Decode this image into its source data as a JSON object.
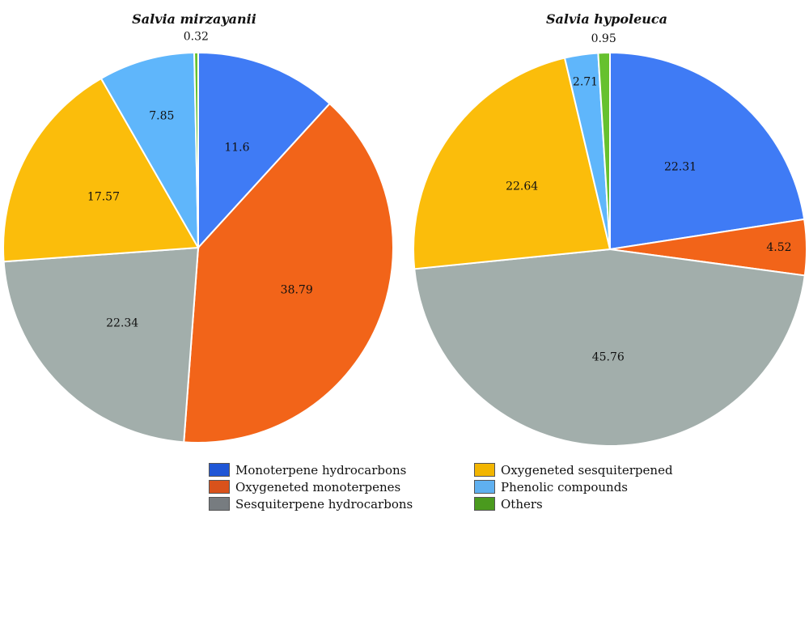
{
  "legend": [
    {
      "label": "Monoterpene hydrocarbons",
      "color": "#1f56d6"
    },
    {
      "label": "Oxygeneted monoterpenes",
      "color": "#d9521b"
    },
    {
      "label": "Sesquiterpene hydrocarbons",
      "color": "#777c80"
    },
    {
      "label": "Oxygeneted sesquiterpened",
      "color": "#f2b500"
    },
    {
      "label": "Phenolic compounds",
      "color": "#5fb0f0"
    },
    {
      "label": "Others",
      "color": "#4a9a1e"
    }
  ],
  "chart_data": [
    {
      "type": "pie",
      "title": "Salvia mirzayanii",
      "categories": [
        "Monoterpene hydrocarbons",
        "Oxygeneted monoterpenes",
        "Sesquiterpene hydrocarbons",
        "Oxygeneted sesquiterpened",
        "Phenolic compounds",
        "Others"
      ],
      "values": [
        11.6,
        38.79,
        22.34,
        17.57,
        7.85,
        0.32
      ],
      "value_labels": [
        "11.6",
        "38.79",
        "22.34",
        "17.57",
        "7.85",
        "0.32"
      ],
      "colors": [
        "#3f7bf5",
        "#f26419",
        "#a2aeab",
        "#fbbd0b",
        "#5fb6fb",
        "#66c12e"
      ]
    },
    {
      "type": "pie",
      "title": "Salvia hypoleuca",
      "categories": [
        "Monoterpene hydrocarbons",
        "Oxygeneted monoterpenes",
        "Sesquiterpene hydrocarbons",
        "Oxygeneted sesquiterpened",
        "Phenolic compounds",
        "Others"
      ],
      "values": [
        22.31,
        4.52,
        45.76,
        22.64,
        2.71,
        0.95
      ],
      "value_labels": [
        "22.31",
        "4.52",
        "45.76",
        "22.64",
        "2.71",
        "0.95"
      ],
      "colors": [
        "#3f7bf5",
        "#f26419",
        "#a2aeab",
        "#fbbd0b",
        "#5fb6fb",
        "#66c12e"
      ]
    }
  ]
}
